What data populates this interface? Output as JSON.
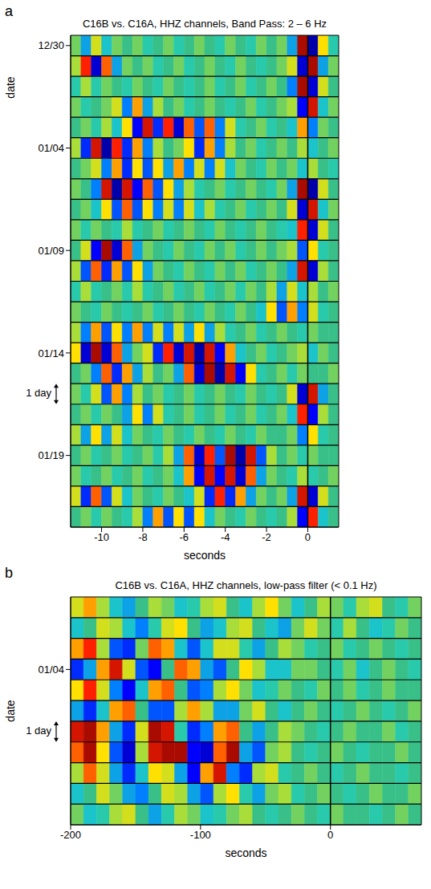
{
  "chart_data": [
    {
      "type": "heatmap",
      "panel_label": "a",
      "title": "C16B vs. C16A, HHZ channels, Band Pass: 2 – 6 Hz",
      "x_label": "seconds",
      "y_label": "date",
      "xlim": [
        -11.5,
        1.5
      ],
      "xticks": [
        -10,
        -8,
        -6,
        -4,
        -2,
        0
      ],
      "ylim": [
        -0.5,
        23.5
      ],
      "yticks": [
        {
          "value": 0,
          "label": "12/30"
        },
        {
          "value": 5,
          "label": "01/04"
        },
        {
          "value": 10,
          "label": "01/09"
        },
        {
          "value": 15,
          "label": "01/14"
        },
        {
          "value": 20,
          "label": "01/19"
        }
      ],
      "vline": 0,
      "zlim": [
        -1,
        1
      ],
      "annotations": [
        {
          "text": "1 day",
          "y": 17
        }
      ],
      "x_bins": [
        -11.5,
        -11,
        -10.5,
        -10,
        -9.5,
        -9,
        -8.5,
        -8,
        -7.5,
        -7,
        -6.5,
        -6,
        -5.5,
        -5,
        -4.5,
        -4,
        -3.5,
        -3,
        -2.5,
        -2,
        -1.5,
        -1,
        -0.5,
        0,
        0.5,
        1,
        1.5
      ],
      "cells": [
        [
          0.1,
          -0.3,
          0.3,
          -0.2,
          0.1,
          0,
          0.1,
          -0.1,
          0,
          0.1,
          -0.1,
          0,
          0.1,
          0,
          -0.1,
          0.1,
          0,
          -0.1,
          0.1,
          0,
          0.1,
          -0.3,
          0.9,
          -0.9,
          0.4,
          -0.1
        ],
        [
          0.2,
          0.7,
          -0.8,
          0.6,
          -0.3,
          0.1,
          0,
          0.1,
          -0.1,
          0,
          0.1,
          -0.1,
          0,
          0.1,
          0,
          -0.1,
          0.1,
          0,
          -0.1,
          0,
          0.1,
          0.3,
          -0.8,
          0.9,
          -0.3,
          0.1
        ],
        [
          -0.1,
          0.2,
          -0.1,
          0.1,
          0,
          -0.1,
          0.1,
          0,
          -0.1,
          0.1,
          0,
          -0.1,
          0,
          0.1,
          -0.1,
          0,
          0.1,
          -0.1,
          0,
          0.1,
          0,
          -0.4,
          0.9,
          -0.8,
          0.3,
          0
        ],
        [
          0.1,
          -0.1,
          0,
          0.1,
          0.3,
          -0.4,
          0.5,
          -0.3,
          0.2,
          0,
          0.1,
          -0.1,
          0,
          0.1,
          0,
          -0.1,
          0,
          0.1,
          -0.1,
          0,
          0.1,
          0.2,
          -0.7,
          0.8,
          -0.2,
          0.1
        ],
        [
          0,
          0.1,
          -0.1,
          0.2,
          -0.2,
          0.4,
          -0.7,
          0.8,
          -0.6,
          0.7,
          -0.8,
          0.6,
          -0.5,
          0.6,
          -0.4,
          0.3,
          -0.1,
          0,
          0.1,
          -0.1,
          0,
          -0.2,
          0.5,
          -0.4,
          0.1,
          0
        ],
        [
          0.2,
          -0.6,
          0.8,
          -0.9,
          0.7,
          -0.6,
          0.5,
          -0.4,
          0.2,
          0,
          0.1,
          0.4,
          -0.6,
          0.5,
          -0.4,
          0.2,
          0,
          0.1,
          -0.1,
          0,
          0.1,
          0,
          0.2,
          -0.2,
          0,
          0.1
        ],
        [
          0,
          0.1,
          0.3,
          -0.4,
          0.5,
          -0.6,
          0.4,
          -0.5,
          0.4,
          -0.3,
          0.5,
          -0.4,
          0.3,
          -0.4,
          0.3,
          -0.2,
          0.1,
          0,
          -0.1,
          0.1,
          0,
          0.1,
          -0.2,
          0.2,
          0,
          -0.1
        ],
        [
          0.1,
          0,
          -0.4,
          0.8,
          -0.9,
          0.8,
          -0.7,
          0.6,
          -0.5,
          0.4,
          -0.3,
          0.2,
          -0.1,
          0,
          0.1,
          -0.1,
          0,
          0.1,
          0,
          -0.1,
          0.1,
          -0.3,
          0.9,
          -0.9,
          0.3,
          0
        ],
        [
          0,
          0.1,
          -0.2,
          0.4,
          -0.5,
          0.6,
          -0.5,
          0.4,
          -0.4,
          0.3,
          -0.4,
          0.3,
          -0.2,
          0.2,
          -0.1,
          0,
          0.1,
          -0.1,
          0,
          0.1,
          0,
          0.3,
          -0.8,
          0.8,
          -0.2,
          0.1
        ],
        [
          0.1,
          -0.1,
          0.1,
          0,
          -0.1,
          0.2,
          -0.1,
          0,
          0.1,
          -0.1,
          0,
          0.1,
          0,
          -0.1,
          0.1,
          0,
          -0.1,
          0,
          0.1,
          0,
          -0.1,
          -0.2,
          0.7,
          -0.8,
          0.3,
          0
        ],
        [
          0,
          0.3,
          -0.7,
          0.9,
          -0.8,
          0.6,
          -0.3,
          0.1,
          0,
          -0.1,
          0.1,
          0,
          -0.1,
          0.1,
          0,
          0.1,
          -0.1,
          0,
          0.1,
          0,
          0.1,
          0.2,
          -0.5,
          0.4,
          -0.1,
          0
        ],
        [
          0.2,
          -0.5,
          0.6,
          -0.6,
          0.5,
          -0.5,
          0.4,
          -0.3,
          0.1,
          0,
          -0.1,
          0.1,
          0,
          -0.1,
          0.1,
          0,
          0.1,
          -0.1,
          0,
          0.1,
          0,
          -0.3,
          0.8,
          -0.8,
          0.2,
          0
        ],
        [
          -0.1,
          0.2,
          -0.1,
          0,
          0.1,
          -0.1,
          0.2,
          -0.1,
          0,
          0.1,
          -0.1,
          0,
          0.1,
          -0.1,
          0,
          0.1,
          -0.1,
          0.1,
          0,
          0.2,
          -0.3,
          0.3,
          -0.2,
          0.2,
          0,
          0.1
        ],
        [
          0.1,
          0,
          -0.1,
          0.1,
          0,
          -0.1,
          0,
          0.1,
          -0.1,
          0,
          0.1,
          0,
          -0.1,
          0.1,
          0,
          -0.1,
          0.1,
          0,
          -0.2,
          0.4,
          -0.5,
          0.5,
          -0.4,
          0.3,
          -0.1,
          0
        ],
        [
          0.2,
          -0.4,
          0.5,
          -0.5,
          0.4,
          -0.4,
          0.5,
          -0.4,
          0.3,
          -0.4,
          0.3,
          -0.3,
          0.4,
          -0.3,
          0.2,
          -0.1,
          0,
          0.1,
          -0.1,
          0,
          0.1,
          0,
          -0.1,
          0.1,
          0,
          0
        ],
        [
          0.4,
          -0.8,
          0.9,
          -0.8,
          0.6,
          -0.3,
          0.1,
          0.3,
          -0.6,
          0.7,
          -0.8,
          0.8,
          -0.9,
          0.8,
          -0.7,
          0.5,
          -0.2,
          0,
          0.1,
          -0.1,
          0,
          0.1,
          0.2,
          -0.2,
          0.1,
          0
        ],
        [
          0,
          0.1,
          -0.4,
          0.6,
          -0.6,
          0.5,
          -0.3,
          0.2,
          0,
          0.1,
          -0.3,
          0.6,
          -0.8,
          0.9,
          -0.9,
          0.8,
          -0.7,
          0.4,
          -0.1,
          0,
          0.1,
          -0.1,
          0.1,
          0,
          0,
          0.1
        ],
        [
          0.1,
          -0.1,
          0.3,
          -0.5,
          0.5,
          -0.4,
          0.2,
          0,
          0.1,
          -0.1,
          0,
          0.1,
          -0.1,
          0,
          0.1,
          0,
          -0.1,
          0.1,
          0,
          -0.1,
          0,
          0.3,
          -0.8,
          0.8,
          -0.3,
          0
        ],
        [
          0,
          0.1,
          -0.1,
          0.1,
          0,
          -0.3,
          0.4,
          -0.4,
          0.3,
          -0.1,
          0,
          0.1,
          -0.1,
          0,
          0.1,
          -0.1,
          0,
          0.1,
          -0.1,
          0,
          0.1,
          -0.2,
          0.7,
          -0.7,
          0.2,
          0
        ],
        [
          0.2,
          -0.3,
          0.4,
          -0.3,
          0.3,
          -0.2,
          0.1,
          0,
          -0.1,
          0.1,
          0,
          -0.1,
          0.1,
          0,
          -0.1,
          0.1,
          0,
          -0.1,
          0.1,
          0,
          0,
          0.1,
          -0.4,
          0.4,
          -0.1,
          0
        ],
        [
          0,
          0.1,
          -0.1,
          0,
          0.1,
          -0.1,
          0,
          0.1,
          -0.1,
          0.2,
          -0.3,
          0.6,
          -0.8,
          0.7,
          -0.5,
          0.9,
          -0.9,
          0.8,
          -0.5,
          0.2,
          0,
          0.1,
          -0.1,
          0.1,
          0,
          0
        ],
        [
          0.1,
          -0.1,
          0,
          0.1,
          -0.1,
          0,
          0.1,
          -0.1,
          0,
          0.1,
          -0.2,
          0.5,
          -0.7,
          0.8,
          -0.7,
          0.8,
          -0.8,
          0.6,
          -0.3,
          0.1,
          0,
          -0.1,
          0.2,
          -0.1,
          0,
          0.1
        ],
        [
          0.3,
          -0.6,
          0.6,
          -0.5,
          0.3,
          -0.2,
          0.1,
          0,
          -0.1,
          0.1,
          0,
          -0.2,
          0.3,
          -0.6,
          0.7,
          -0.6,
          0.5,
          -0.3,
          0.1,
          0,
          0.1,
          -0.3,
          0.8,
          -0.8,
          0.3,
          0
        ],
        [
          0,
          0.1,
          -0.1,
          0.1,
          0,
          -0.1,
          0.2,
          -0.4,
          0.5,
          -0.5,
          0.4,
          -0.5,
          0.4,
          -0.2,
          0.1,
          0,
          -0.1,
          0.1,
          0,
          -0.1,
          0,
          0.2,
          -0.7,
          0.7,
          -0.2,
          0
        ]
      ]
    },
    {
      "type": "heatmap",
      "panel_label": "b",
      "title": "C16B vs. C16A, HHZ channels, low-pass filter (< 0.1 Hz)",
      "x_label": "seconds",
      "y_label": "date",
      "xlim": [
        -200,
        70
      ],
      "xticks": [
        -200,
        -100,
        0
      ],
      "ylim": [
        -0.5,
        10.5
      ],
      "yticks": [
        {
          "value": 3,
          "label": "01/04"
        }
      ],
      "vline": 0,
      "zlim": [
        -1,
        1
      ],
      "annotations": [
        {
          "text": "1 day",
          "y": 6
        }
      ],
      "x_bins": [
        -200,
        -190,
        -180,
        -170,
        -160,
        -150,
        -140,
        -130,
        -120,
        -110,
        -100,
        -90,
        -80,
        -70,
        -60,
        -50,
        -40,
        -30,
        -20,
        -10,
        0,
        10,
        20,
        30,
        40,
        50,
        60,
        70
      ],
      "cells": [
        [
          0.3,
          0.5,
          0.2,
          -0.2,
          -0.3,
          0,
          0.2,
          0.1,
          -0.2,
          -0.1,
          0.2,
          0.3,
          0,
          -0.2,
          0.2,
          0.4,
          0.1,
          -0.2,
          0,
          0.2,
          0.1,
          -0.1,
          0.2,
          0.3,
          0,
          -0.1,
          0.1
        ],
        [
          -0.2,
          0,
          0.3,
          0.2,
          -0.2,
          -0.4,
          -0.1,
          0.3,
          0.4,
          0,
          -0.3,
          -0.2,
          0.2,
          0.3,
          0,
          -0.2,
          -0.3,
          0.1,
          0.3,
          0.1,
          -0.1,
          0.2,
          0,
          -0.2,
          -0.1,
          0.1,
          0
        ],
        [
          0.5,
          0.7,
          0.2,
          -0.5,
          -0.6,
          0.1,
          0.6,
          0.5,
          -0.2,
          -0.5,
          -0.2,
          0.3,
          0.3,
          -0.1,
          -0.3,
          0,
          0.2,
          0.1,
          -0.1,
          0,
          0.1,
          -0.1,
          0,
          0.1,
          0,
          -0.1,
          0
        ],
        [
          -0.6,
          -0.3,
          0.5,
          0.8,
          0.3,
          -0.5,
          -0.7,
          0,
          0.6,
          0.5,
          -0.3,
          -0.5,
          0,
          0.4,
          0.2,
          -0.2,
          -0.2,
          0.1,
          0.1,
          0,
          -0.1,
          0.1,
          -0.2,
          0,
          0.1,
          0,
          -0.1
        ],
        [
          0.4,
          0.7,
          0.3,
          -0.4,
          -0.7,
          -0.2,
          0.5,
          0.6,
          0,
          -0.5,
          -0.4,
          0.2,
          0.4,
          0.1,
          -0.2,
          -0.1,
          0.1,
          0,
          -0.1,
          0.1,
          0,
          0.1,
          -0.1,
          0,
          0.1,
          0,
          0
        ],
        [
          -0.3,
          -0.6,
          -0.2,
          0.5,
          0.6,
          0,
          -0.5,
          -0.5,
          0.2,
          0.5,
          0.2,
          -0.3,
          -0.3,
          0.1,
          0.3,
          0,
          -0.2,
          0,
          0.1,
          0,
          -0.1,
          0,
          0.1,
          0,
          -0.1,
          0,
          0.1
        ],
        [
          0.8,
          0.9,
          0.5,
          -0.3,
          -0.6,
          0.3,
          0.9,
          0.8,
          -0.1,
          -0.6,
          -0.4,
          0.5,
          0.6,
          0,
          -0.3,
          0,
          0.2,
          0.1,
          0,
          -0.1,
          0,
          0.1,
          0,
          0,
          0.1,
          -0.1,
          0
        ],
        [
          0.6,
          0.9,
          0.4,
          -0.5,
          -0.8,
          0.2,
          0.8,
          0.9,
          0.9,
          -0.7,
          -0.8,
          0.6,
          0.9,
          -0.3,
          -0.5,
          0.1,
          0.2,
          0,
          -0.1,
          0,
          0.1,
          0,
          -0.1,
          0,
          0,
          0.1,
          0
        ],
        [
          0.2,
          0.6,
          0.3,
          -0.3,
          -0.6,
          -0.2,
          0.4,
          0.3,
          -0.3,
          -0.7,
          0.5,
          0.8,
          -0.4,
          -0.6,
          0.2,
          0.3,
          -0.1,
          0,
          0.1,
          0,
          -0.1,
          0,
          0.1,
          0,
          0,
          -0.1,
          0
        ],
        [
          -0.2,
          0,
          0.3,
          0.1,
          -0.3,
          -0.4,
          0,
          0.3,
          0.2,
          -0.3,
          -0.5,
          0.2,
          0.4,
          -0.1,
          -0.3,
          0.1,
          0.2,
          -0.1,
          0,
          0.1,
          0,
          -0.1,
          0,
          0.1,
          0,
          0,
          0.1
        ],
        [
          0.1,
          -0.2,
          -0.1,
          0.2,
          0.3,
          0,
          -0.3,
          -0.1,
          0.2,
          0.1,
          -0.2,
          -0.1,
          0.1,
          0.2,
          0,
          -0.1,
          0,
          0.1,
          0,
          -0.1,
          0.1,
          0,
          0,
          -0.1,
          0,
          0.1,
          0
        ]
      ]
    }
  ]
}
